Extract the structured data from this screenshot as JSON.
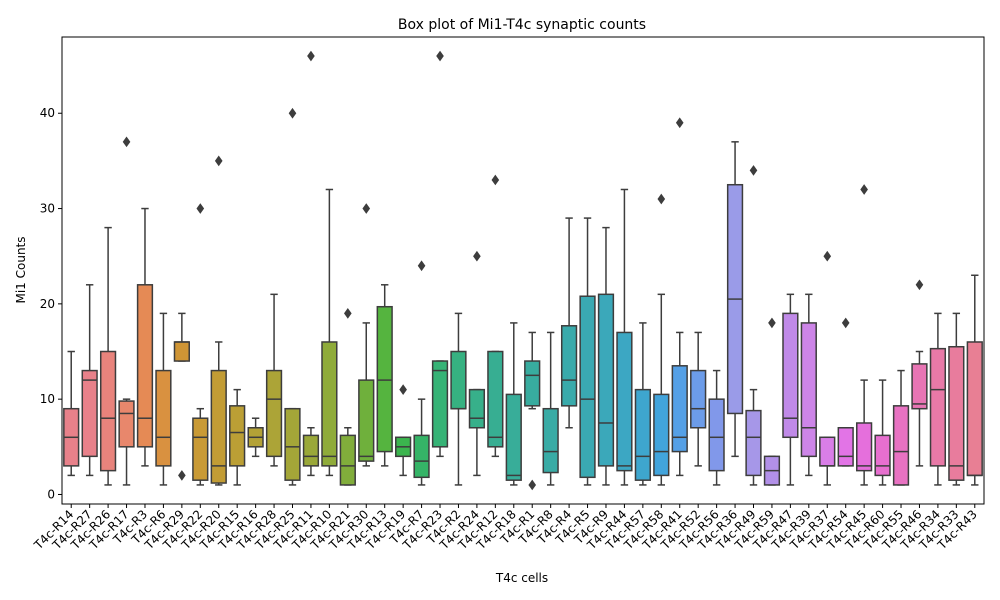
{
  "chart_data": {
    "type": "box",
    "title": "Box plot of Mi1-T4c synaptic counts",
    "xlabel": "T4c cells",
    "ylabel": "Mi1 Counts",
    "ylim": [
      -1,
      48
    ],
    "yticks": [
      0,
      10,
      20,
      30,
      40
    ],
    "grid": false,
    "legend": "none",
    "boxes": [
      {
        "category": "T4c-R14",
        "min": 2,
        "q1": 3,
        "median": 6,
        "q3": 9,
        "max": 15,
        "outliers": [],
        "color": "#e8818a"
      },
      {
        "category": "T4c-R27",
        "min": 2,
        "q1": 4,
        "median": 12,
        "q3": 13,
        "max": 22,
        "outliers": [],
        "color": "#e8818a"
      },
      {
        "category": "T4c-R26",
        "min": 1,
        "q1": 2.5,
        "median": 8,
        "q3": 15,
        "max": 28,
        "outliers": [],
        "color": "#e8837c"
      },
      {
        "category": "T4c-R17",
        "min": 1,
        "q1": 5,
        "median": 8.5,
        "q3": 9.8,
        "max": 10,
        "outliers": [
          37
        ],
        "color": "#e8876c"
      },
      {
        "category": "T4c-R3",
        "min": 3,
        "q1": 5,
        "median": 8,
        "q3": 22,
        "max": 30,
        "outliers": [],
        "color": "#e58a55"
      },
      {
        "category": "T4c-R6",
        "min": 1,
        "q1": 3,
        "median": 6,
        "q3": 13,
        "max": 19,
        "outliers": [],
        "color": "#d99140"
      },
      {
        "category": "T4c-R29",
        "min": 14,
        "q1": 14,
        "median": 16,
        "q3": 16,
        "max": 19,
        "outliers": [
          2
        ],
        "color": "#cf9535"
      },
      {
        "category": "T4c-R22",
        "min": 1,
        "q1": 1.5,
        "median": 6,
        "q3": 8,
        "max": 9,
        "outliers": [
          30
        ],
        "color": "#c99a35"
      },
      {
        "category": "T4c-R20",
        "min": 1,
        "q1": 1.2,
        "median": 3,
        "q3": 13,
        "max": 16,
        "outliers": [
          35
        ],
        "color": "#c29c35"
      },
      {
        "category": "T4c-R15",
        "min": 1,
        "q1": 3,
        "median": 6.5,
        "q3": 9.3,
        "max": 11,
        "outliers": [],
        "color": "#bb9f35"
      },
      {
        "category": "T4c-R16",
        "min": 4,
        "q1": 5,
        "median": 6,
        "q3": 7,
        "max": 8,
        "outliers": [],
        "color": "#b3a236"
      },
      {
        "category": "T4c-R28",
        "min": 3,
        "q1": 4,
        "median": 10,
        "q3": 13,
        "max": 21,
        "outliers": [],
        "color": "#aca437"
      },
      {
        "category": "T4c-R25",
        "min": 1,
        "q1": 1.5,
        "median": 5,
        "q3": 9,
        "max": 9,
        "outliers": [
          40
        ],
        "color": "#a4a638"
      },
      {
        "category": "T4c-R11",
        "min": 2,
        "q1": 3,
        "median": 4,
        "q3": 6.2,
        "max": 7,
        "outliers": [
          46
        ],
        "color": "#9aa839"
      },
      {
        "category": "T4c-R10",
        "min": 2,
        "q1": 3,
        "median": 4,
        "q3": 16,
        "max": 32,
        "outliers": [],
        "color": "#8fab3a"
      },
      {
        "category": "T4c-R21",
        "min": 1,
        "q1": 1,
        "median": 3,
        "q3": 6.2,
        "max": 7,
        "outliers": [
          19
        ],
        "color": "#81ad3b"
      },
      {
        "category": "T4c-R30",
        "min": 3,
        "q1": 3.5,
        "median": 4,
        "q3": 12,
        "max": 18,
        "outliers": [
          30
        ],
        "color": "#6fb03c"
      },
      {
        "category": "T4c-R13",
        "min": 3,
        "q1": 4.5,
        "median": 12,
        "q3": 19.7,
        "max": 22,
        "outliers": [],
        "color": "#55b43f"
      },
      {
        "category": "T4c-R19",
        "min": 2,
        "q1": 4,
        "median": 5,
        "q3": 6,
        "max": 6,
        "outliers": [
          11
        ],
        "color": "#3bb54e"
      },
      {
        "category": "T4c-R7",
        "min": 1,
        "q1": 1.8,
        "median": 3.5,
        "q3": 6.2,
        "max": 10,
        "outliers": [
          24
        ],
        "color": "#35b467"
      },
      {
        "category": "T4c-R23",
        "min": 4,
        "q1": 5,
        "median": 13,
        "q3": 14,
        "max": 14,
        "outliers": [
          46
        ],
        "color": "#36b376"
      },
      {
        "category": "T4c-R2",
        "min": 1,
        "q1": 9,
        "median": 9,
        "q3": 15,
        "max": 19,
        "outliers": [],
        "color": "#36b181"
      },
      {
        "category": "T4c-R24",
        "min": 2,
        "q1": 7,
        "median": 8,
        "q3": 11,
        "max": 11,
        "outliers": [
          25
        ],
        "color": "#37b08a"
      },
      {
        "category": "T4c-R12",
        "min": 4,
        "q1": 5,
        "median": 6,
        "q3": 15,
        "max": 15,
        "outliers": [
          33
        ],
        "color": "#37ae92"
      },
      {
        "category": "T4c-R18",
        "min": 1,
        "q1": 1.5,
        "median": 2,
        "q3": 10.5,
        "max": 18,
        "outliers": [],
        "color": "#38ad99"
      },
      {
        "category": "T4c-R1",
        "min": 9,
        "q1": 9.3,
        "median": 12.5,
        "q3": 14,
        "max": 17,
        "outliers": [
          1
        ],
        "color": "#38ac9f"
      },
      {
        "category": "T4c-R8",
        "min": 1,
        "q1": 2.3,
        "median": 4.5,
        "q3": 9,
        "max": 17,
        "outliers": [],
        "color": "#39aba5"
      },
      {
        "category": "T4c-R4",
        "min": 7,
        "q1": 9.3,
        "median": 12,
        "q3": 17.7,
        "max": 29,
        "outliers": [],
        "color": "#39aaab"
      },
      {
        "category": "T4c-R5",
        "min": 1,
        "q1": 1.8,
        "median": 10,
        "q3": 20.8,
        "max": 29,
        "outliers": [],
        "color": "#3aa9b2"
      },
      {
        "category": "T4c-R9",
        "min": 1,
        "q1": 3,
        "median": 7.5,
        "q3": 21,
        "max": 28,
        "outliers": [],
        "color": "#3ba8ba"
      },
      {
        "category": "T4c-R44",
        "min": 1,
        "q1": 2.5,
        "median": 3,
        "q3": 17,
        "max": 32,
        "outliers": [],
        "color": "#3ca7c3"
      },
      {
        "category": "T4c-R57",
        "min": 1,
        "q1": 1.5,
        "median": 4,
        "q3": 11,
        "max": 18,
        "outliers": [],
        "color": "#3ea6ce"
      },
      {
        "category": "T4c-R58",
        "min": 1,
        "q1": 2,
        "median": 4.5,
        "q3": 10.5,
        "max": 21,
        "outliers": [
          31
        ],
        "color": "#42a4dc"
      },
      {
        "category": "T4c-R41",
        "min": 2,
        "q1": 4.5,
        "median": 6,
        "q3": 13.5,
        "max": 17,
        "outliers": [
          39
        ],
        "color": "#55a0e6"
      },
      {
        "category": "T4c-R52",
        "min": 3,
        "q1": 7,
        "median": 9,
        "q3": 13,
        "max": 17,
        "outliers": [],
        "color": "#6c9ce9"
      },
      {
        "category": "T4c-R56",
        "min": 1,
        "q1": 2.5,
        "median": 6,
        "q3": 10,
        "max": 13,
        "outliers": [],
        "color": "#8198ea"
      },
      {
        "category": "T4c-R36",
        "min": 4,
        "q1": 8.5,
        "median": 20.5,
        "q3": 32.5,
        "max": 37,
        "outliers": [],
        "color": "#9a9be8"
      },
      {
        "category": "T4c-R49",
        "min": 1,
        "q1": 2,
        "median": 6,
        "q3": 8.8,
        "max": 11,
        "outliers": [
          34
        ],
        "color": "#a697e8"
      },
      {
        "category": "T4c-R59",
        "min": 1,
        "q1": 1,
        "median": 2.5,
        "q3": 4,
        "max": 4,
        "outliers": [
          18
        ],
        "color": "#b290e8"
      },
      {
        "category": "T4c-R47",
        "min": 1,
        "q1": 6,
        "median": 8,
        "q3": 19,
        "max": 21,
        "outliers": [],
        "color": "#c08ae8"
      },
      {
        "category": "T4c-R39",
        "min": 2,
        "q1": 4,
        "median": 7,
        "q3": 18,
        "max": 21,
        "outliers": [],
        "color": "#cd85e8"
      },
      {
        "category": "T4c-R37",
        "min": 1,
        "q1": 3,
        "median": 3,
        "q3": 6,
        "max": 6,
        "outliers": [
          25
        ],
        "color": "#d97ee8"
      },
      {
        "category": "T4c-R54",
        "min": 3,
        "q1": 3,
        "median": 4,
        "q3": 7,
        "max": 7,
        "outliers": [
          18
        ],
        "color": "#e274e6"
      },
      {
        "category": "T4c-R45",
        "min": 1,
        "q1": 2.5,
        "median": 3,
        "q3": 7.5,
        "max": 12,
        "outliers": [
          32
        ],
        "color": "#e56fdc"
      },
      {
        "category": "T4c-R60",
        "min": 1,
        "q1": 2,
        "median": 3,
        "q3": 6.2,
        "max": 12,
        "outliers": [],
        "color": "#e76fcf"
      },
      {
        "category": "T4c-R55",
        "min": 1,
        "q1": 1,
        "median": 4.5,
        "q3": 9.3,
        "max": 13,
        "outliers": [],
        "color": "#e872c2"
      },
      {
        "category": "T4c-R46",
        "min": 3,
        "q1": 9,
        "median": 9.5,
        "q3": 13.7,
        "max": 15,
        "outliers": [
          22
        ],
        "color": "#e875b4"
      },
      {
        "category": "T4c-R34",
        "min": 1,
        "q1": 3,
        "median": 11,
        "q3": 15.3,
        "max": 19,
        "outliers": [],
        "color": "#e879a7"
      },
      {
        "category": "T4c-R33",
        "min": 1,
        "q1": 1.5,
        "median": 3,
        "q3": 15.5,
        "max": 19,
        "outliers": [],
        "color": "#e87c9d"
      },
      {
        "category": "T4c-R43",
        "min": 1,
        "q1": 2,
        "median": 2,
        "q3": 16,
        "max": 23,
        "outliers": [],
        "color": "#e87f94"
      }
    ]
  }
}
